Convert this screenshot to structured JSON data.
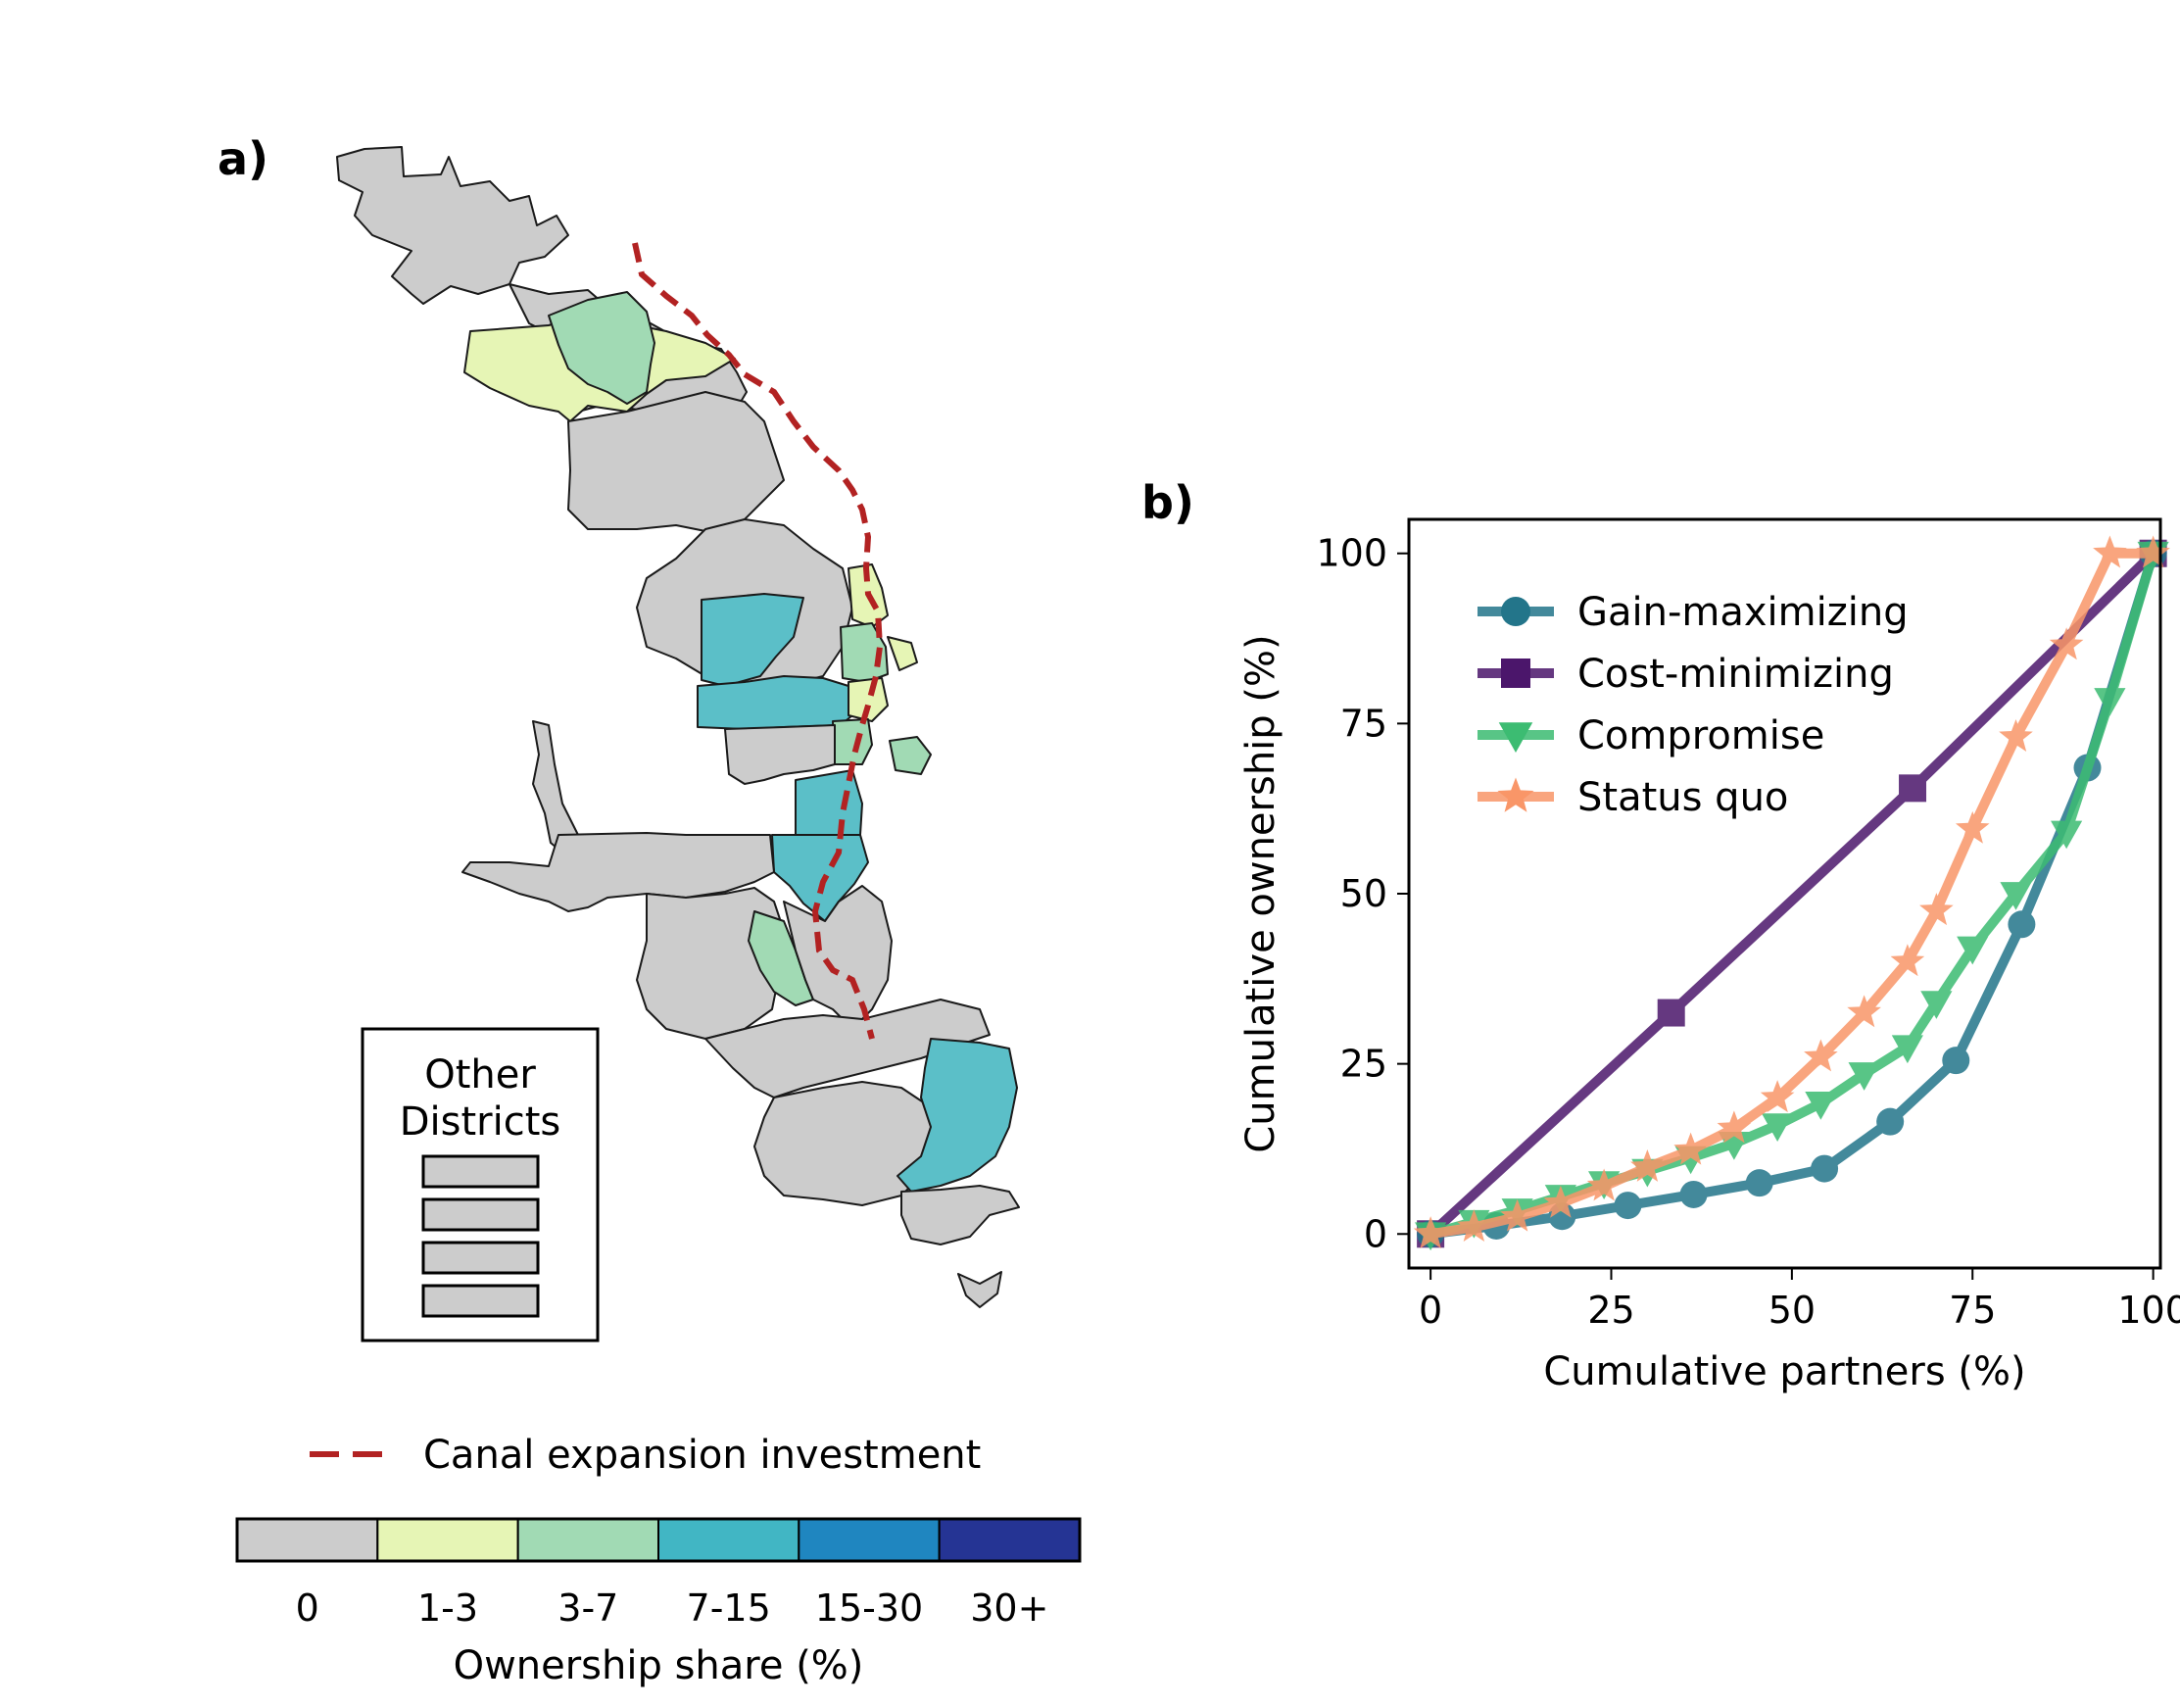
{
  "panel_a": {
    "label": "a)",
    "other_districts": {
      "line1": "Other",
      "line2": "Districts"
    },
    "canal_legend": "Canal expansion investment",
    "canal_color": "#b22222",
    "colorbar": {
      "title": "Ownership share (%)",
      "bins": [
        {
          "label": "0",
          "color": "#cccccc"
        },
        {
          "label": "1-3",
          "color": "#e6f5b5"
        },
        {
          "label": "3-7",
          "color": "#a1dab4"
        },
        {
          "label": "7-15",
          "color": "#41b6c4"
        },
        {
          "label": "15-30",
          "color": "#1f86c0"
        },
        {
          "label": "30+",
          "color": "#253494"
        }
      ]
    }
  },
  "panel_b": {
    "label": "b)"
  },
  "chart_data": {
    "type": "line",
    "xlabel": "Cumulative partners (%)",
    "ylabel": "Cumulative ownership (%)",
    "xlim": [
      -3,
      101
    ],
    "ylim": [
      -5,
      105
    ],
    "xticks": [
      0,
      25,
      50,
      75,
      100
    ],
    "yticks": [
      0,
      25,
      50,
      75,
      100
    ],
    "legend_position": "upper-left",
    "series": [
      {
        "name": "Gain-maximizing",
        "color": "#23758a",
        "marker": "circle",
        "x": [
          0,
          9.1,
          18.2,
          27.3,
          36.4,
          45.5,
          54.5,
          63.6,
          72.7,
          81.8,
          90.9,
          100
        ],
        "y": [
          0,
          1.2,
          2.6,
          4.2,
          5.8,
          7.5,
          9.6,
          16.5,
          25.5,
          45.5,
          68.5,
          100
        ]
      },
      {
        "name": "Cost-minimizing",
        "color": "#4b166b",
        "marker": "square",
        "x": [
          0,
          33.3,
          66.7,
          100
        ],
        "y": [
          0,
          32.5,
          65.5,
          100
        ]
      },
      {
        "name": "Compromise",
        "color": "#3cbc72",
        "marker": "triangle-down",
        "x": [
          0,
          6,
          12,
          18,
          24,
          30,
          36,
          42,
          48,
          54,
          60,
          66,
          70,
          75,
          81,
          88,
          94,
          100
        ],
        "y": [
          0,
          1.8,
          3.5,
          5.5,
          7.5,
          9.3,
          11.2,
          13.3,
          16,
          19.2,
          23.5,
          27.5,
          34,
          42,
          50,
          59,
          78.5,
          100
        ]
      },
      {
        "name": "Status quo",
        "color": "#f99668",
        "marker": "star",
        "x": [
          0,
          6,
          12,
          18,
          24,
          30,
          36,
          42,
          48,
          54,
          60,
          66,
          70,
          75,
          81,
          88,
          94,
          100
        ],
        "y": [
          0,
          1,
          2.5,
          4.5,
          7,
          9.8,
          12.3,
          15.5,
          20,
          26,
          32.5,
          40,
          47.5,
          59.5,
          73,
          86.5,
          100,
          100
        ]
      }
    ]
  }
}
